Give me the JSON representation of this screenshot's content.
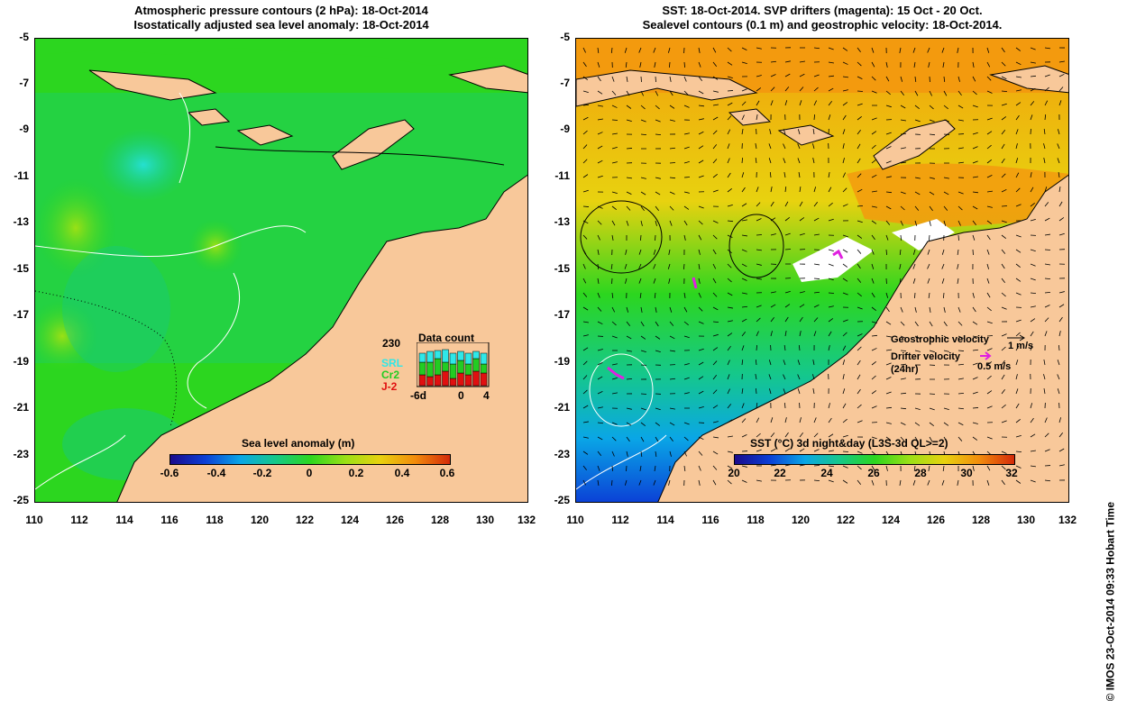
{
  "left": {
    "title_line1": "Atmospheric pressure contours (2 hPa): 18-Oct-2014",
    "title_line2": "Isostatically adjusted sea level anomaly: 18-Oct-2014",
    "y_ticks": [
      "-5",
      "-7",
      "-9",
      "-11",
      "-13",
      "-15",
      "-17",
      "-19",
      "-21",
      "-23",
      "-25"
    ],
    "x_ticks": [
      "110",
      "112",
      "114",
      "116",
      "118",
      "120",
      "122",
      "124",
      "126",
      "128",
      "130",
      "132"
    ],
    "colorbar": {
      "title": "Sea level anomaly (m)",
      "ticks": [
        "-0.6",
        "-0.4",
        "-0.2",
        "0",
        "0.2",
        "0.4",
        "0.6"
      ],
      "colors": [
        "#1a0a8c",
        "#0b3fd6",
        "#0aa6e6",
        "#15c88a",
        "#2cd61f",
        "#9ae016",
        "#e8d20f",
        "#f28c0c",
        "#d42a0a"
      ]
    },
    "data_count": {
      "title": "Data count",
      "max_label": "230",
      "x_left": "-6d",
      "x_mid": "0",
      "x_right": "4",
      "legend": [
        {
          "name": "SRL",
          "color": "#2ee8e8"
        },
        {
          "name": "Cr2",
          "color": "#22cc22"
        },
        {
          "name": "J-2",
          "color": "#e01010"
        }
      ]
    }
  },
  "right": {
    "title_line1": "SST: 18-Oct-2014. SVP drifters (magenta): 15 Oct - 20 Oct.",
    "title_line2": "Sealevel contours (0.1 m) and geostrophic velocity: 18-Oct-2014.",
    "y_ticks": [
      "-5",
      "-7",
      "-9",
      "-11",
      "-13",
      "-15",
      "-17",
      "-19",
      "-21",
      "-23",
      "-25"
    ],
    "x_ticks": [
      "110",
      "112",
      "114",
      "116",
      "118",
      "120",
      "122",
      "124",
      "126",
      "128",
      "130",
      "132"
    ],
    "colorbar": {
      "title": "SST (°C) 3d night&day (L3S-3d QL>=2)",
      "ticks": [
        "20",
        "22",
        "24",
        "26",
        "28",
        "30",
        "32"
      ],
      "colors": [
        "#1a0a8c",
        "#0b3fd6",
        "#0aa6e6",
        "#15c88a",
        "#2cd61f",
        "#9ae016",
        "#e8d20f",
        "#f28c0c",
        "#d42a0a"
      ]
    },
    "legend": {
      "geo_label": "Geostrophic velocity",
      "geo_scale": "1 m/s",
      "drifter_label": "Drifter velocity",
      "drifter_sub": "(24hr)",
      "drifter_scale": "0.5 m/s"
    }
  },
  "copyright": "© IMOS 23-Oct-2014 09:33 Hobart Time",
  "colors": {
    "land": "#f8c89a",
    "drifter": "#e020e0"
  }
}
